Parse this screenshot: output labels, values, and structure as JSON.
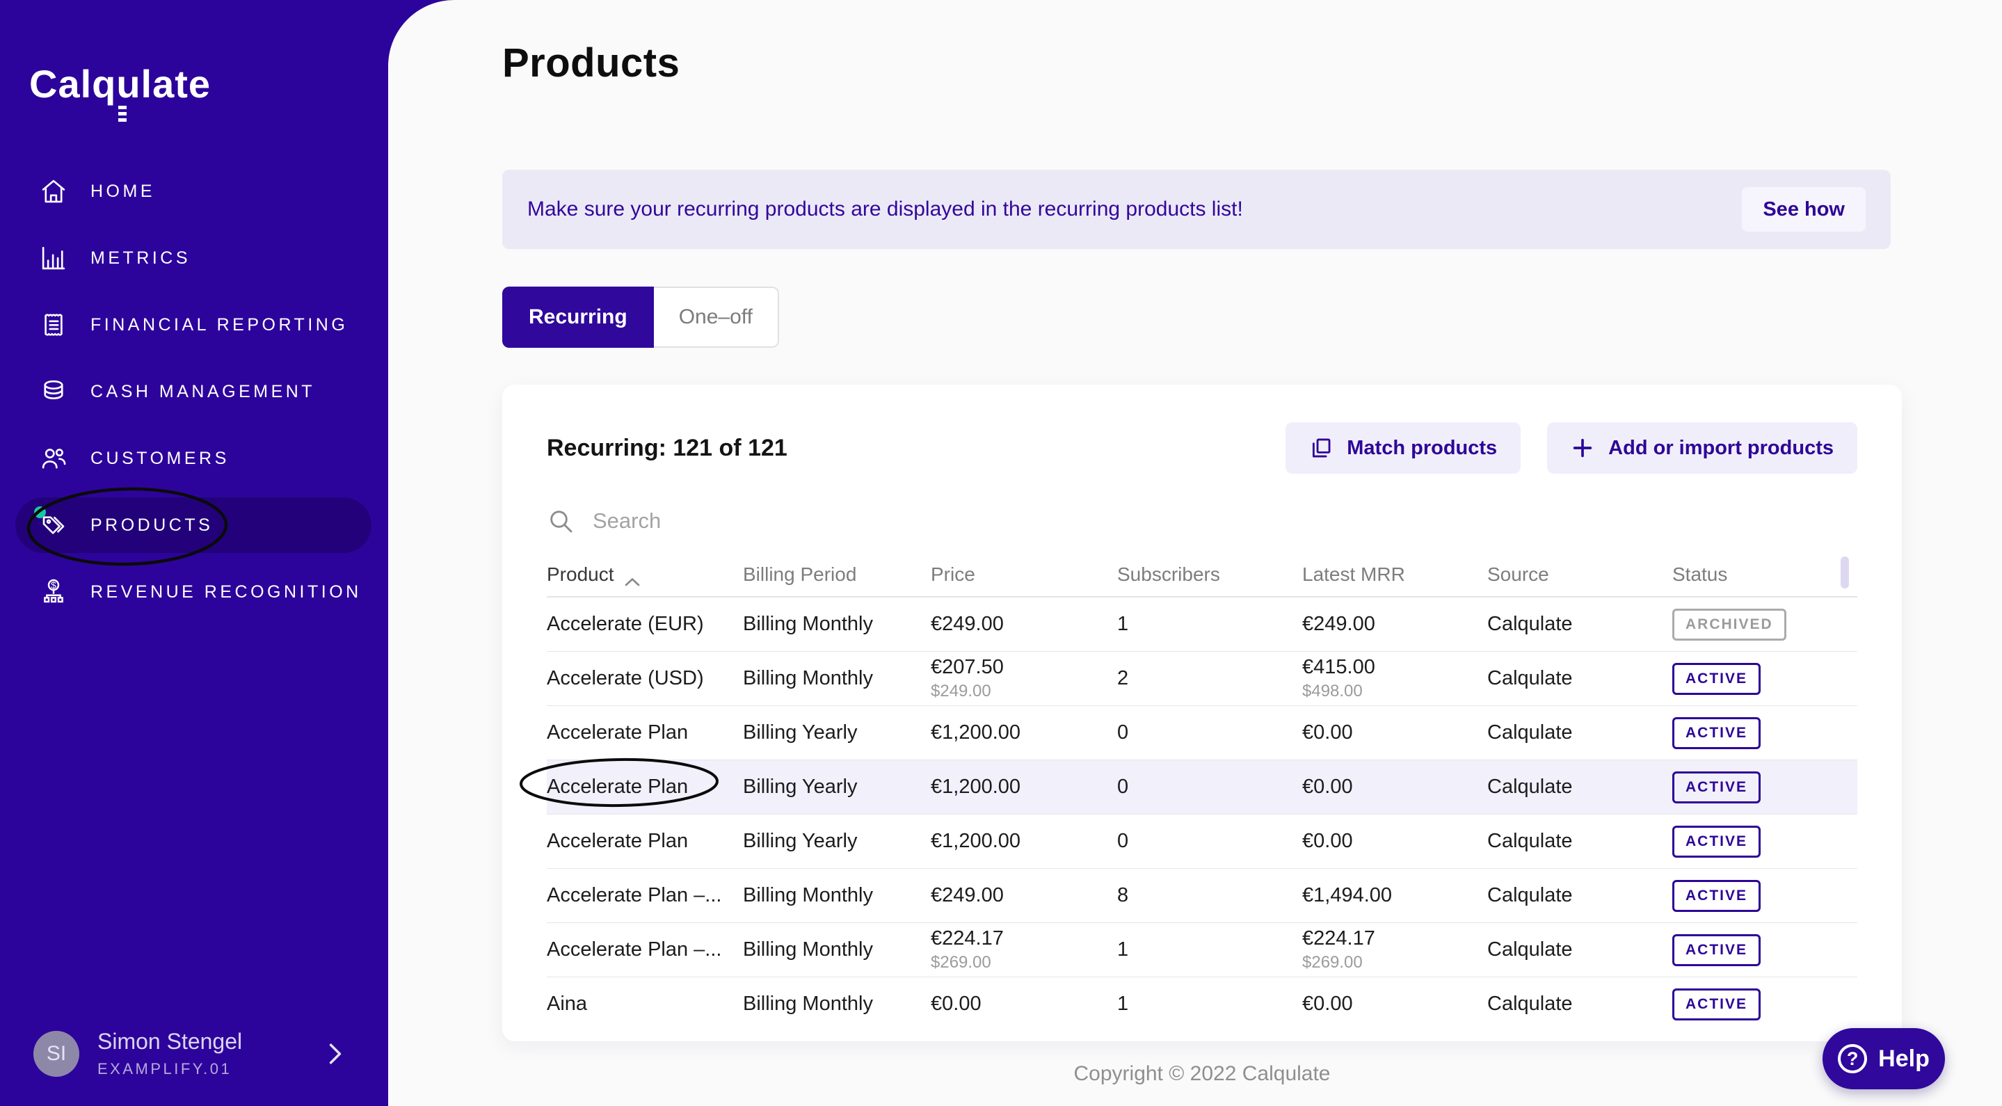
{
  "sidebar": {
    "logo": "Calqulate",
    "items": [
      {
        "label": "HOME"
      },
      {
        "label": "METRICS"
      },
      {
        "label": "FINANCIAL REPORTING"
      },
      {
        "label": "CASH MANAGEMENT"
      },
      {
        "label": "CUSTOMERS"
      },
      {
        "label": "PRODUCTS",
        "active": true
      },
      {
        "label": "REVENUE RECOGNITION"
      }
    ],
    "user": {
      "initials": "SI",
      "name": "Simon Stengel",
      "workspace": "EXAMPLIFY.01"
    }
  },
  "header": {
    "title": "Products"
  },
  "banner": {
    "message": "Make sure your recurring products are displayed in the recurring products list!",
    "action_label": "See how"
  },
  "tabs": [
    {
      "label": "Recurring",
      "active": true
    },
    {
      "label": "One–off",
      "active": false
    }
  ],
  "products_panel": {
    "count_label": "Recurring: 121 of 121",
    "match_button_label": "Match products",
    "add_button_label": "Add or import products",
    "search_placeholder": "Search",
    "table": {
      "columns": [
        "Product",
        "Billing Period",
        "Price",
        "Subscribers",
        "Latest MRR",
        "Source",
        "Status"
      ],
      "sorted_column": "Product",
      "sort_direction": "asc",
      "rows": [
        {
          "product": "Accelerate (EUR)",
          "billing_period": "Billing Monthly",
          "price": "€249.00",
          "price_secondary": "",
          "subscribers": "1",
          "latest_mrr": "€249.00",
          "mrr_secondary": "",
          "source": "Calqulate",
          "status": "ARCHIVED",
          "highlighted": false
        },
        {
          "product": "Accelerate (USD)",
          "billing_period": "Billing Monthly",
          "price": "€207.50",
          "price_secondary": "$249.00",
          "subscribers": "2",
          "latest_mrr": "€415.00",
          "mrr_secondary": "$498.00",
          "source": "Calqulate",
          "status": "ACTIVE",
          "highlighted": false
        },
        {
          "product": "Accelerate Plan",
          "billing_period": "Billing Yearly",
          "price": "€1,200.00",
          "price_secondary": "",
          "subscribers": "0",
          "latest_mrr": "€0.00",
          "mrr_secondary": "",
          "source": "Calqulate",
          "status": "ACTIVE",
          "highlighted": false
        },
        {
          "product": "Accelerate Plan",
          "billing_period": "Billing Yearly",
          "price": "€1,200.00",
          "price_secondary": "",
          "subscribers": "0",
          "latest_mrr": "€0.00",
          "mrr_secondary": "",
          "source": "Calqulate",
          "status": "ACTIVE",
          "highlighted": true
        },
        {
          "product": "Accelerate Plan",
          "billing_period": "Billing Yearly",
          "price": "€1,200.00",
          "price_secondary": "",
          "subscribers": "0",
          "latest_mrr": "€0.00",
          "mrr_secondary": "",
          "source": "Calqulate",
          "status": "ACTIVE",
          "highlighted": false
        },
        {
          "product": "Accelerate Plan –...",
          "billing_period": "Billing Monthly",
          "price": "€249.00",
          "price_secondary": "",
          "subscribers": "8",
          "latest_mrr": "€1,494.00",
          "mrr_secondary": "",
          "source": "Calqulate",
          "status": "ACTIVE",
          "highlighted": false
        },
        {
          "product": "Accelerate Plan –...",
          "billing_period": "Billing Monthly",
          "price": "€224.17",
          "price_secondary": "$269.00",
          "subscribers": "1",
          "latest_mrr": "€224.17",
          "mrr_secondary": "$269.00",
          "source": "Calqulate",
          "status": "ACTIVE",
          "highlighted": false
        },
        {
          "product": "Aina",
          "billing_period": "Billing Monthly",
          "price": "€0.00",
          "price_secondary": "",
          "subscribers": "1",
          "latest_mrr": "€0.00",
          "mrr_secondary": "",
          "source": "Calqulate",
          "status": "ACTIVE",
          "highlighted": false,
          "clipped": true
        }
      ]
    }
  },
  "footer": {
    "copyright": "Copyright © 2022 Calqulate"
  },
  "help": {
    "label": "Help"
  },
  "colors": {
    "sidebar_bg": "#2D049B",
    "sidebar_active_pill": "#23017B",
    "accent_purple": "#2D0697",
    "banner_bg": "#ECE9F7",
    "button_bg": "#F1EEFB",
    "row_highlight": "#F2F0FB",
    "teal_dot": "#17C9A2",
    "archived_gray": "#9B9B9B"
  }
}
